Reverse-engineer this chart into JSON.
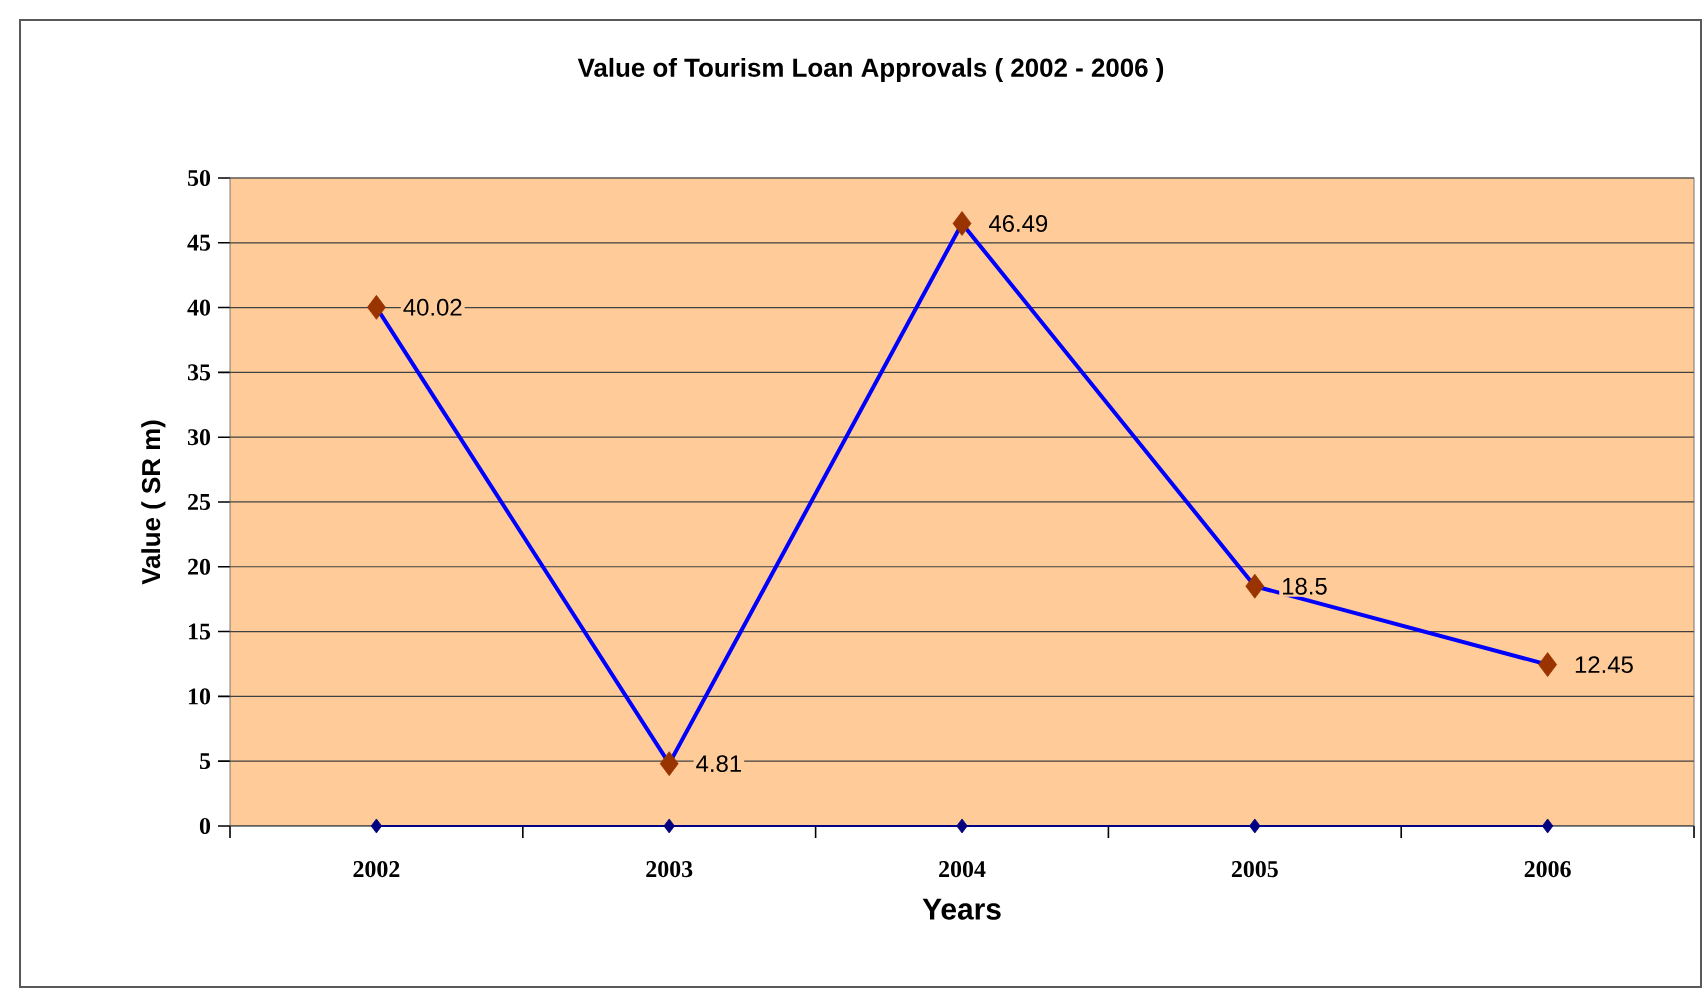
{
  "chart_data": {
    "type": "line",
    "title": "Value of Tourism Loan Approvals ( 2002 - 2006 )",
    "xlabel": "Years",
    "ylabel": "Value ( SR m)",
    "categories": [
      "2002",
      "2003",
      "2004",
      "2005",
      "2006"
    ],
    "series": [
      {
        "color": "#0000ff",
        "colors": [
          "#993300",
          "#993300",
          "#993300",
          "#993300",
          "#993300"
        ],
        "values": [
          40.02,
          4.81,
          46.49,
          18.5,
          12.45
        ],
        "value_labels": [
          "40.02",
          "4.81",
          "46.49",
          "18.5",
          "12.45"
        ]
      },
      {
        "color": "#000080",
        "values": [
          0,
          0,
          0,
          0,
          0
        ]
      }
    ],
    "ylim": [
      0,
      50
    ],
    "yticks": [
      0,
      5,
      10,
      15,
      20,
      25,
      30,
      35,
      40,
      45,
      50
    ],
    "grid": "y",
    "marker": "diamond",
    "legend": false,
    "line_style": "solid"
  }
}
